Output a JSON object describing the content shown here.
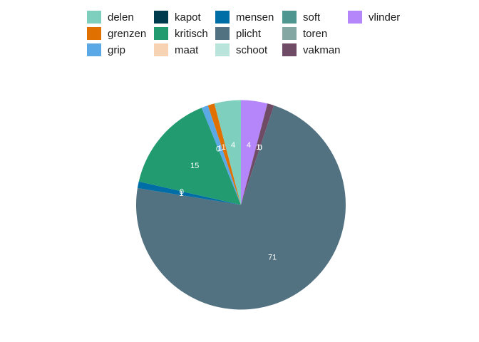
{
  "chart_data": {
    "type": "pie",
    "title": "",
    "categories": [
      "delen",
      "grenzen",
      "grip",
      "kapot",
      "kritisch",
      "maat",
      "mensen",
      "plicht",
      "schoot",
      "soft",
      "toren",
      "vakman",
      "vlinder"
    ],
    "values": [
      4,
      1,
      1,
      0,
      15,
      0,
      1,
      71,
      0,
      0,
      0,
      1,
      4
    ],
    "colors": [
      "#7fcfbe",
      "#e07000",
      "#5aa9e6",
      "#003a4d",
      "#219b6f",
      "#f7d3b3",
      "#006ea6",
      "#527281",
      "#b8e4db",
      "#4f9690",
      "#84a7a3",
      "#704b66",
      "#b586fa"
    ],
    "pie_order": [
      "vlinder",
      "vakman",
      "toren",
      "soft",
      "schoot",
      "plicht",
      "mensen",
      "maat",
      "kritisch",
      "kapot",
      "grip",
      "grenzen",
      "delen"
    ],
    "start": "12 o'clock",
    "direction": "clockwise",
    "legend": {
      "position": "top",
      "columns": 5
    },
    "slice_labels": true,
    "label_color": "#ffffff"
  }
}
